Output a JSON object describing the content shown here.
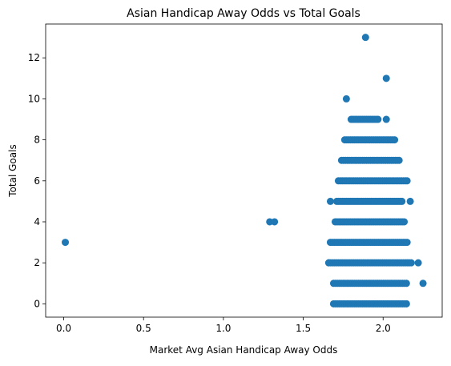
{
  "chart_data": {
    "type": "scatter",
    "title": "Asian Handicap Away Odds vs Total Goals",
    "xlabel": "Market Avg Asian Handicap Away Odds",
    "ylabel": "Total Goals",
    "xlim": [
      -0.113,
      2.37
    ],
    "ylim": [
      -0.65,
      13.65
    ],
    "xticks": [
      0.0,
      0.5,
      1.0,
      1.5,
      2.0
    ],
    "xtick_labels": [
      "0.0",
      "0.5",
      "1.0",
      "1.5",
      "2.0"
    ],
    "yticks": [
      0,
      2,
      4,
      6,
      8,
      10,
      12
    ],
    "ytick_labels": [
      "0",
      "2",
      "4",
      "6",
      "8",
      "10",
      "12"
    ],
    "grid": false,
    "legend": "none",
    "color": "#1f77b4",
    "bands": [
      {
        "y": 0,
        "x_min": 1.69,
        "x_max": 2.15
      },
      {
        "y": 1,
        "x_min": 1.69,
        "x_max": 2.15
      },
      {
        "y": 2,
        "x_min": 1.66,
        "x_max": 2.18
      },
      {
        "y": 3,
        "x_min": 1.67,
        "x_max": 2.15
      },
      {
        "y": 4,
        "x_min": 1.7,
        "x_max": 2.14
      },
      {
        "y": 5,
        "x_min": 1.71,
        "x_max": 2.12
      },
      {
        "y": 6,
        "x_min": 1.72,
        "x_max": 2.14
      },
      {
        "y": 7,
        "x_min": 1.74,
        "x_max": 2.11
      },
      {
        "y": 8,
        "x_min": 1.76,
        "x_max": 2.08
      },
      {
        "y": 9,
        "x_min": 1.8,
        "x_max": 1.97
      }
    ],
    "points": [
      {
        "x": 0.01,
        "y": 3
      },
      {
        "x": 1.29,
        "y": 4
      },
      {
        "x": 1.32,
        "y": 4
      },
      {
        "x": 1.67,
        "y": 5
      },
      {
        "x": 1.66,
        "y": 2
      },
      {
        "x": 2.22,
        "y": 2
      },
      {
        "x": 2.25,
        "y": 1
      },
      {
        "x": 2.17,
        "y": 5
      },
      {
        "x": 2.15,
        "y": 6
      },
      {
        "x": 2.02,
        "y": 9
      },
      {
        "x": 1.77,
        "y": 10
      },
      {
        "x": 2.02,
        "y": 11
      },
      {
        "x": 1.89,
        "y": 13
      }
    ]
  }
}
